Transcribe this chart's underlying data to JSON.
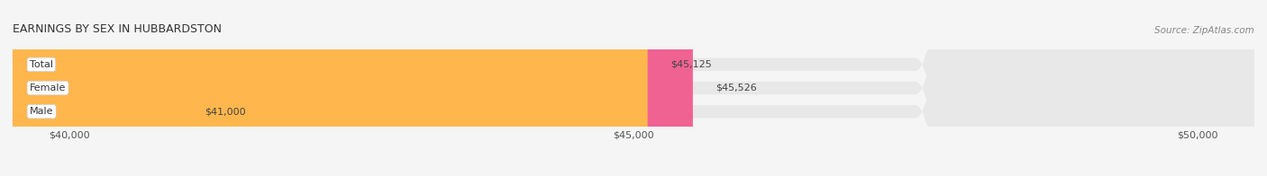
{
  "title": "EARNINGS BY SEX IN HUBBARDSTON",
  "source": "Source: ZipAtlas.com",
  "categories": [
    "Male",
    "Female",
    "Total"
  ],
  "values": [
    41000,
    45526,
    45125
  ],
  "colors": [
    "#add8f0",
    "#f06292",
    "#ffb74d"
  ],
  "bar_labels": [
    "$41,000",
    "$45,526",
    "$45,125"
  ],
  "xmin": 39500,
  "xmax": 50500,
  "xticks": [
    40000,
    45000,
    50000
  ],
  "xtick_labels": [
    "$40,000",
    "$45,000",
    "$50,000"
  ],
  "background_color": "#f5f5f5",
  "bar_background_color": "#e8e8e8",
  "title_fontsize": 9,
  "source_fontsize": 7.5,
  "label_fontsize": 8,
  "tick_fontsize": 8,
  "bar_height": 0.55,
  "figsize": [
    14.06,
    1.96
  ],
  "dpi": 100
}
